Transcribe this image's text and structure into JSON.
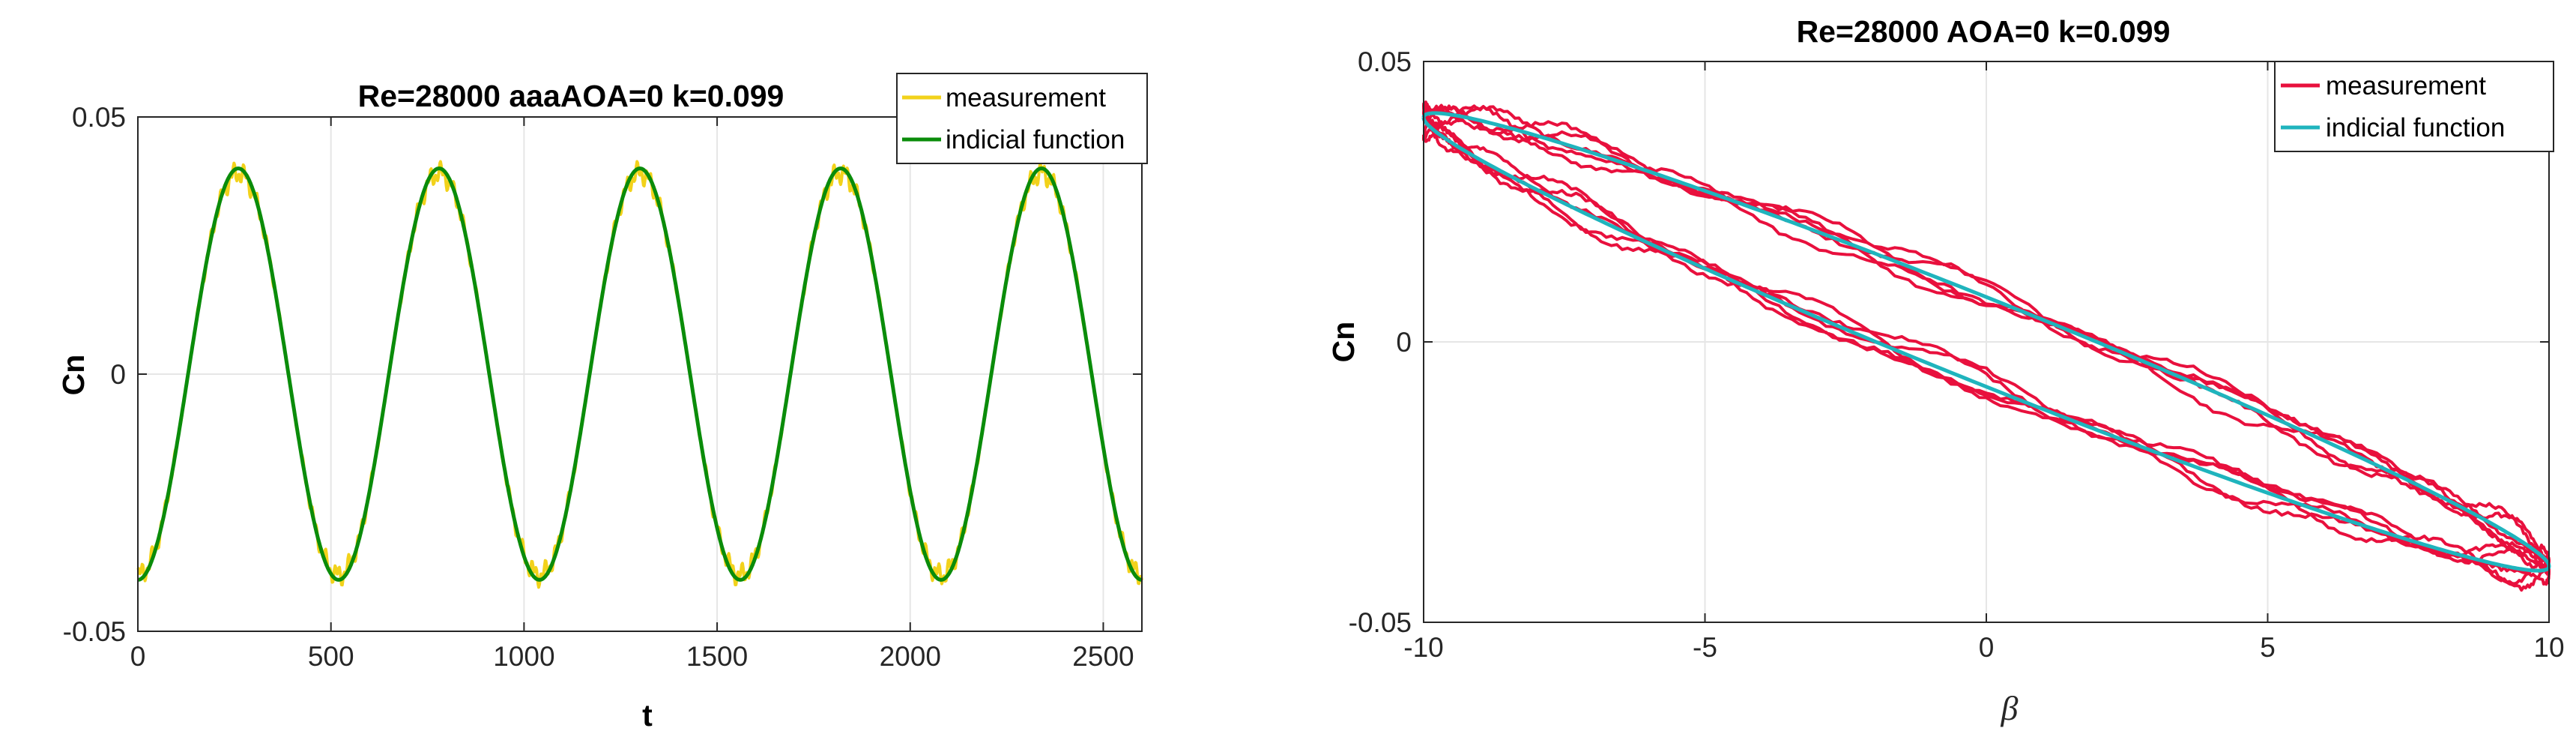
{
  "chart_data": [
    {
      "type": "line",
      "title": "Re=28000 aaaAOA=0 k=0.099",
      "xlabel": "t",
      "ylabel": "Cn",
      "xlim": [
        0,
        2600
      ],
      "ylim": [
        -0.05,
        0.05
      ],
      "xticks": [
        0,
        500,
        1000,
        1500,
        2000,
        2500
      ],
      "xtick_labels": [
        "0",
        "500",
        "1000",
        "1500",
        "2000",
        "2500"
      ],
      "yticks": [
        -0.05,
        0,
        0.05
      ],
      "ytick_labels": [
        "-0.05",
        "0",
        "0.05"
      ],
      "grid": true,
      "legend_position": "top-right",
      "series": [
        {
          "name": "measurement",
          "color": "#f2d21b",
          "kind": "sine",
          "amplitude": 0.04,
          "period": 520,
          "phase_t": 0,
          "noise": 0.0022,
          "endpoints": [
            0,
            2600
          ]
        },
        {
          "name": "indicial function",
          "color": "#0a8c0a",
          "kind": "sine",
          "amplitude": 0.04,
          "period": 520,
          "phase_t": 0,
          "noise": 0,
          "endpoints": [
            0,
            2600
          ]
        }
      ]
    },
    {
      "type": "line",
      "title": "Re=28000 AOA=0 k=0.099",
      "xlabel": "β",
      "ylabel": "Cn",
      "xlim": [
        -10,
        10
      ],
      "ylim": [
        -0.05,
        0.05
      ],
      "xticks": [
        -10,
        -5,
        0,
        5,
        10
      ],
      "xtick_labels": [
        "-10",
        "-5",
        "0",
        "5",
        "10"
      ],
      "yticks": [
        -0.05,
        0,
        0.05
      ],
      "ytick_labels": [
        "-0.05",
        "0",
        "0.05"
      ],
      "grid": true,
      "legend_position": "top-right",
      "series": [
        {
          "name": "measurement",
          "color": "#e8103d",
          "kind": "loop",
          "beta_amplitude": 10,
          "cn_amplitude": 0.04,
          "loop_width": 0.008,
          "cycles": 5,
          "noise": 0.0025
        },
        {
          "name": "indicial function",
          "color": "#1fb4bd",
          "kind": "loop",
          "beta_amplitude": 10,
          "cn_amplitude": 0.04,
          "loop_width": 0.008,
          "cycles": 1,
          "noise": 0
        }
      ]
    }
  ]
}
